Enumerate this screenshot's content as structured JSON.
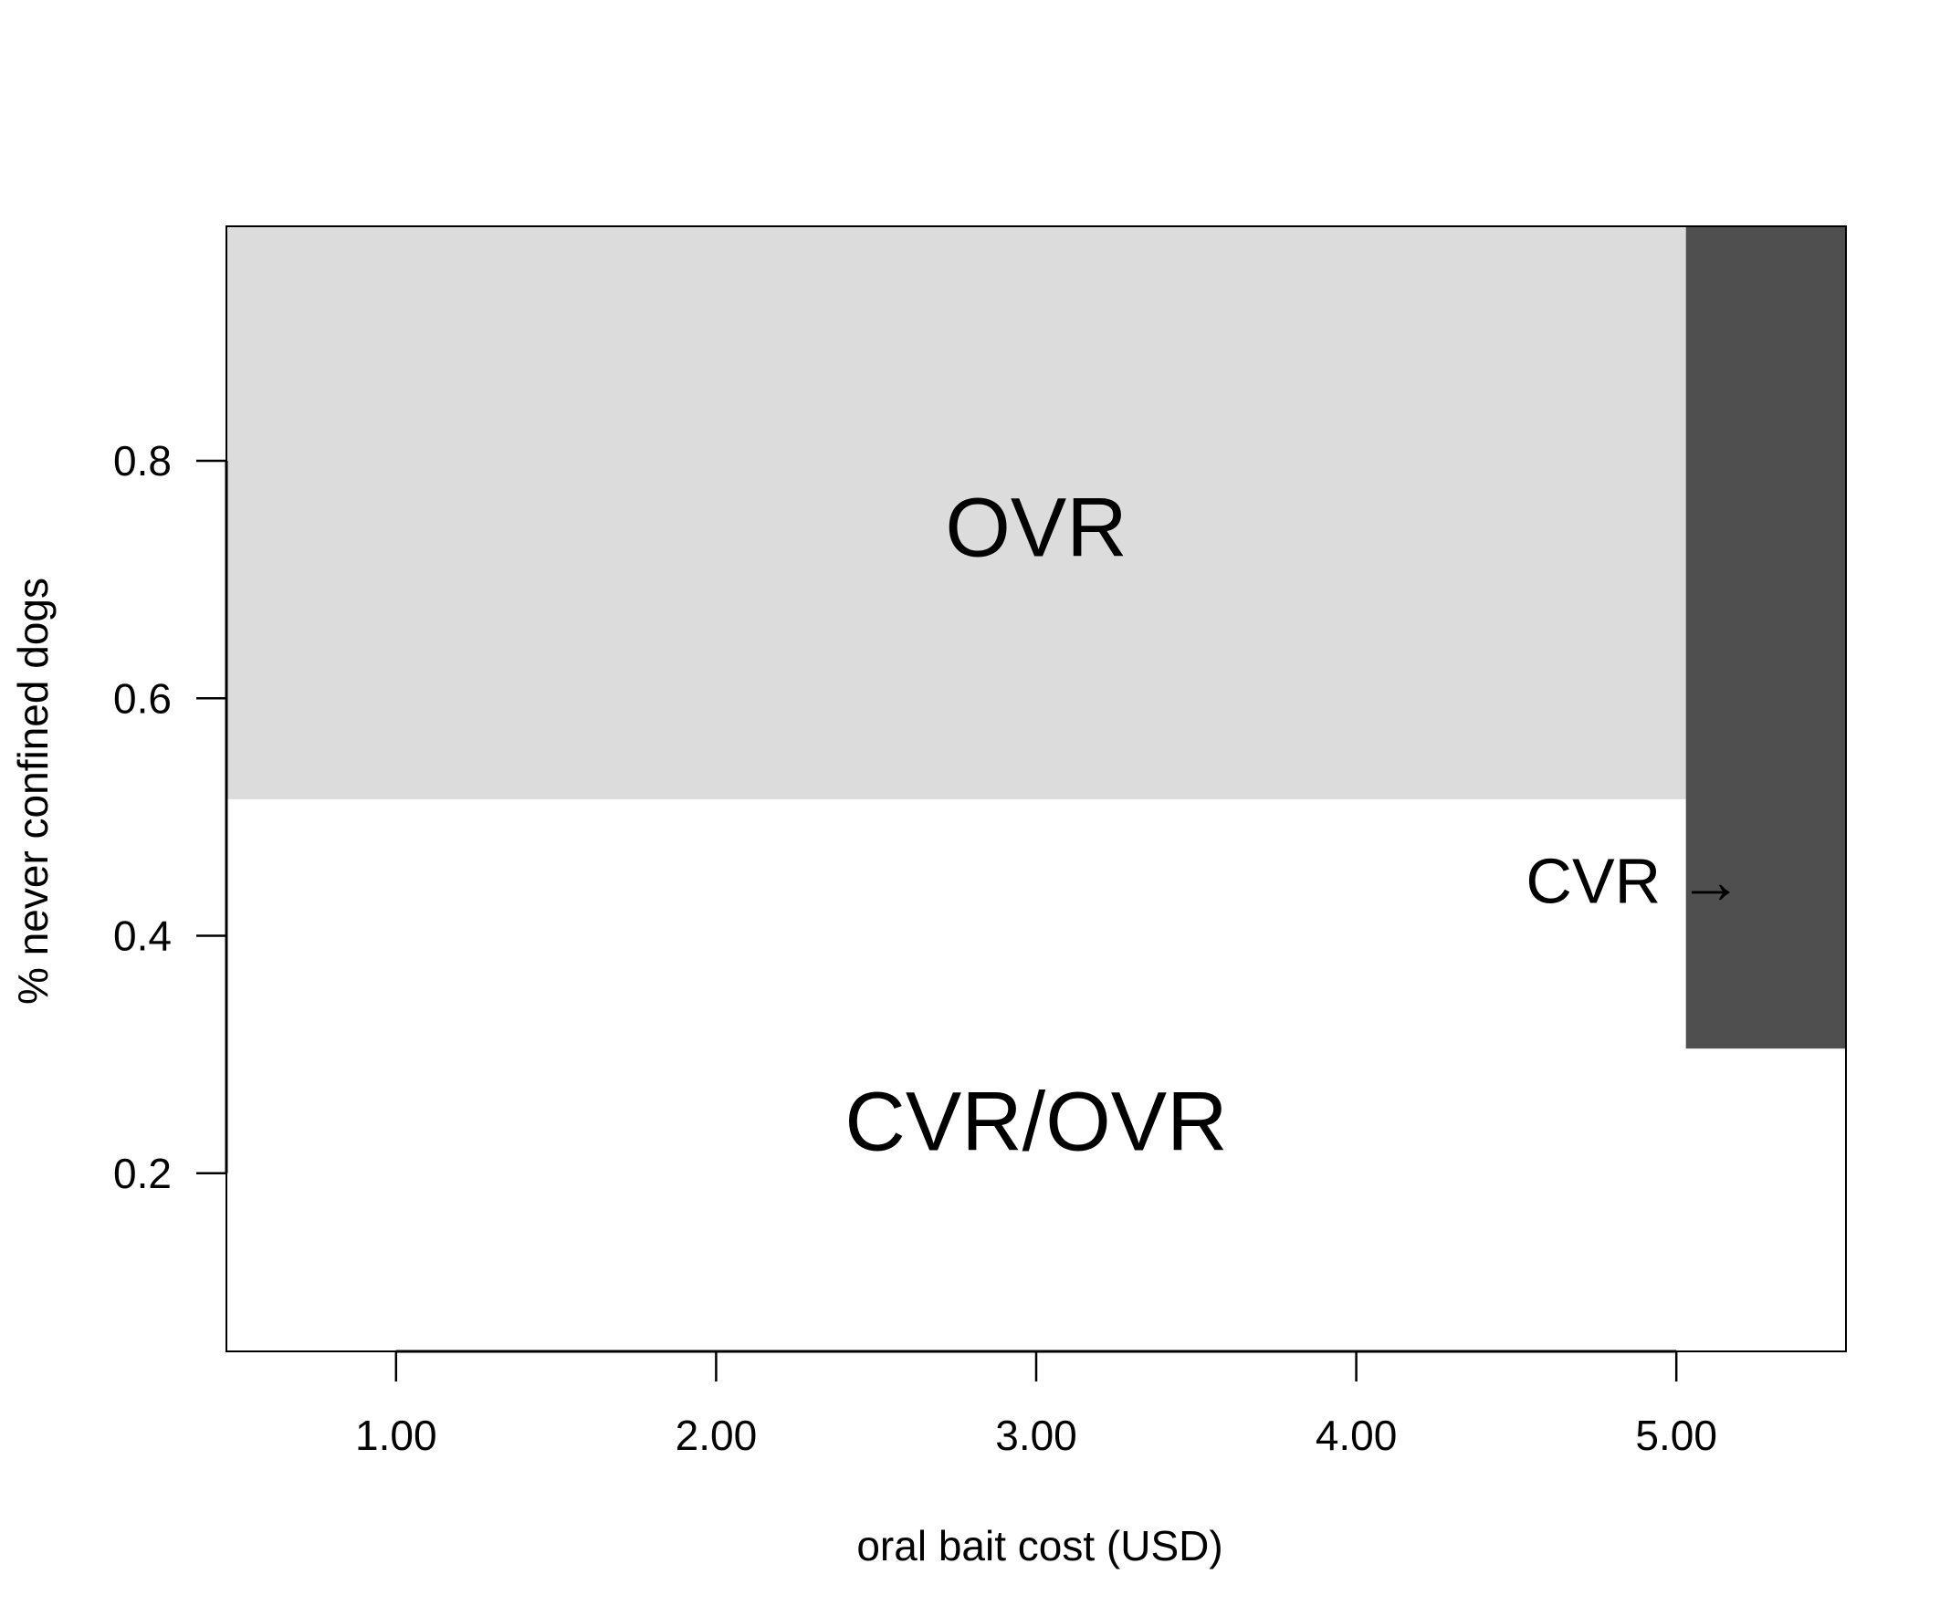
{
  "chart_data": {
    "type": "area",
    "title": "",
    "xlabel": "oral bait cost (USD)",
    "ylabel": "% never confined dogs",
    "xlim": [
      0.47,
      5.53
    ],
    "ylim": [
      0.05,
      0.9975
    ],
    "x_ticks": [
      1.0,
      2.0,
      3.0,
      4.0,
      5.0
    ],
    "x_tick_labels": [
      "1.00",
      "2.00",
      "3.00",
      "4.00",
      "5.00"
    ],
    "y_ticks": [
      0.2,
      0.4,
      0.6,
      0.8
    ],
    "y_tick_labels": [
      "0.2",
      "0.4",
      "0.6",
      "0.8"
    ],
    "grid": false,
    "regions": [
      {
        "label": "OVR",
        "fill": "#dcdcdc",
        "x": [
          0.47,
          5.03
        ],
        "y": [
          0.515,
          0.9975
        ]
      },
      {
        "label": "",
        "fill": "#4f4f4f",
        "x": [
          5.03,
          5.53
        ],
        "y": [
          0.305,
          0.9975
        ]
      },
      {
        "label": "CVR/OVR",
        "fill": "#ffffff",
        "x": [
          0.47,
          5.53
        ],
        "y": [
          0.05,
          0.515
        ]
      }
    ],
    "annotations": [
      {
        "text": "OVR",
        "x": 3.0,
        "y": 0.745
      },
      {
        "text": "CVR/OVR",
        "x": 3.0,
        "y": 0.245
      },
      {
        "text": "CVR →",
        "x": 4.53,
        "y": 0.447
      }
    ]
  },
  "colors": {
    "axis": "#000000",
    "ovr_region": "#dcdcdc",
    "cvr_region": "#4f4f4f",
    "background": "#ffffff"
  }
}
